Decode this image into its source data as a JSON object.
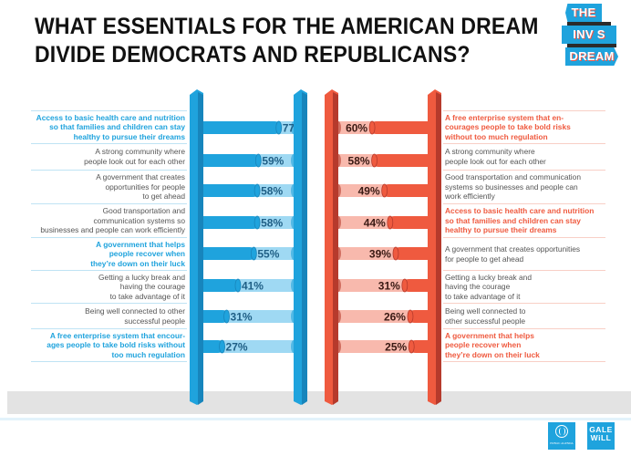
{
  "header": {
    "title_line1": "WHAT ESSENTIALS FOR THE AMERICAN DREAM",
    "title_line2": "DIVIDE DEMOCRATS AND REPUBLICANS?",
    "logo_lines": [
      "THE",
      "INV S BLE",
      "DREAM"
    ]
  },
  "footer": {
    "partner1": "PUBLIC AGENDA",
    "partner2_line1": "GALE",
    "partner2_line2": "WiLL"
  },
  "colors": {
    "democrat": "#1fa3dd",
    "democrat_dark": "#1785bc",
    "democrat_light": "#9fd9f3",
    "republican": "#ef5a3f",
    "republican_dark": "#b63a2c",
    "republican_light": "#f8b9ad"
  },
  "chart_data": [
    {
      "type": "bar",
      "name": "Democrats",
      "orientation": "horizontal",
      "direction": "left-to-right",
      "ylim": [
        0,
        100
      ],
      "categories": [
        "Access to basic health care and nutrition so that families and children can stay healthy to pursue their dreams",
        "A strong community where people look out for each other",
        "A government that creates opportunities for people to get ahead",
        "Good transportation and communication systems so businesses and people can work efficiently",
        "A government that helps people recover when they're down on their luck",
        "Getting a lucky break and having the courage to take advantage of it",
        "Being well connected to other successful people",
        "A free enterprise system that encourages people to take bold risks without too much regulation"
      ],
      "label_lines": [
        [
          "Access to basic health care and nutrition",
          "so that families and children can stay",
          "healthy to pursue their dreams"
        ],
        [
          "A strong community where",
          "people look out for each other"
        ],
        [
          "A government that creates",
          "opportunities for people",
          "to get ahead"
        ],
        [
          "Good transportation and",
          "communication systems so",
          "businesses and people can work efficiently"
        ],
        [
          "A government that helps",
          "people recover when",
          "they’re down on their luck"
        ],
        [
          "Getting a lucky break and",
          "having the courage",
          "to take advantage of it"
        ],
        [
          "Being well connected to other",
          "successful people"
        ],
        [
          "A free enterprise system that encour-",
          "ages people to take bold risks without",
          "too much regulation"
        ]
      ],
      "highlighted": [
        true,
        false,
        false,
        false,
        true,
        false,
        false,
        true
      ],
      "values": [
        77,
        59,
        58,
        58,
        55,
        41,
        31,
        27
      ],
      "value_labels": [
        "77%",
        "59%",
        "58%",
        "58%",
        "55%",
        "41%",
        "31%",
        "27%"
      ]
    },
    {
      "type": "bar",
      "name": "Republicans",
      "orientation": "horizontal",
      "direction": "right-to-left",
      "ylim": [
        0,
        100
      ],
      "categories": [
        "A free enterprise system that encourages people to take bold risks without too much regulation",
        "A strong community where people look out for each other",
        "Good transportation and communication systems so businesses and people can work efficiently",
        "Access to basic health care and nutrition so that families and children can stay healthy to pursue their dreams",
        "A government that creates opportunities for people to get ahead",
        "Getting a lucky break and having the courage to take advantage of it",
        "Being well connected to other successful people",
        "A government that helps people recover when they're down on their luck"
      ],
      "label_lines": [
        [
          "A free enterprise system that en-",
          "courages people to take bold risks",
          "without too much regulation"
        ],
        [
          "A strong community where",
          "people look out for each other"
        ],
        [
          "Good transportation and communication",
          "systems so businesses and people can",
          "work efficiently"
        ],
        [
          "Access to basic health care and nutrition",
          "so that families and children can stay",
          "healthy to pursue their dreams"
        ],
        [
          "A government that creates opportunities",
          "for people to get ahead"
        ],
        [
          "Getting a lucky break and",
          "having the courage",
          "to take advantage of it"
        ],
        [
          "Being well connected to",
          "other successful people"
        ],
        [
          "A government that helps",
          "people recover when",
          "they’re down on their luck"
        ]
      ],
      "highlighted": [
        true,
        false,
        false,
        true,
        false,
        false,
        false,
        true
      ],
      "values": [
        60,
        58,
        49,
        44,
        39,
        31,
        26,
        25
      ],
      "value_labels": [
        "60%",
        "58%",
        "49%",
        "44%",
        "39%",
        "31%",
        "26%",
        "25%"
      ]
    }
  ]
}
